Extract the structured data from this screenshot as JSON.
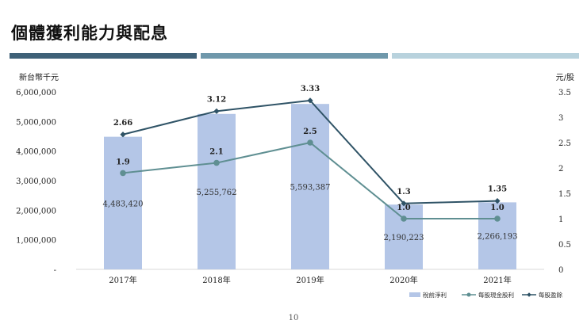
{
  "page": {
    "title": "個體獲利能力與配息",
    "page_number": "10"
  },
  "colors": {
    "band1": "#3f6178",
    "band2": "#6f98ab",
    "band3": "#b8d2dd",
    "bar": "#b4c6e7",
    "dividend": "#5f8f92",
    "eps": "#2f5366"
  },
  "chart_data": {
    "type": "bar+line",
    "categories": [
      "2017年",
      "2018年",
      "2019年",
      "2020年",
      "2021年"
    ],
    "left_axis": {
      "label": "新台幣千元",
      "range": [
        0,
        6000000
      ],
      "ticks": [
        "-",
        "1,000,000",
        "2,000,000",
        "3,000,000",
        "4,000,000",
        "5,000,000",
        "6,000,000"
      ]
    },
    "right_axis": {
      "label": "元/股",
      "range": [
        0,
        3.5
      ],
      "ticks": [
        "0",
        "0.5",
        "1",
        "1.5",
        "2",
        "2.5",
        "3",
        "3.5"
      ]
    },
    "series": [
      {
        "name": "稅前淨利",
        "kind": "bar",
        "axis": "left",
        "values": [
          4483420,
          5255762,
          5593387,
          2190223,
          2266193
        ],
        "labels": [
          "4,483,420",
          "5,255,762",
          "5,593,387",
          "2,190,223",
          "2,266,193"
        ]
      },
      {
        "name": "每股現金股利",
        "kind": "line",
        "axis": "right",
        "values": [
          1.9,
          2.1,
          2.5,
          1.0,
          1.0
        ],
        "labels": [
          "1.9",
          "2.1",
          "2.5",
          "1.0",
          "1.0"
        ]
      },
      {
        "name": "每股盈餘",
        "kind": "line",
        "axis": "right",
        "values": [
          2.66,
          3.12,
          3.33,
          1.3,
          1.35
        ],
        "labels": [
          "2.66",
          "3.12",
          "3.33",
          "1.3",
          "1.35"
        ]
      }
    ],
    "legend_position": "bottom-right",
    "grid": false
  }
}
